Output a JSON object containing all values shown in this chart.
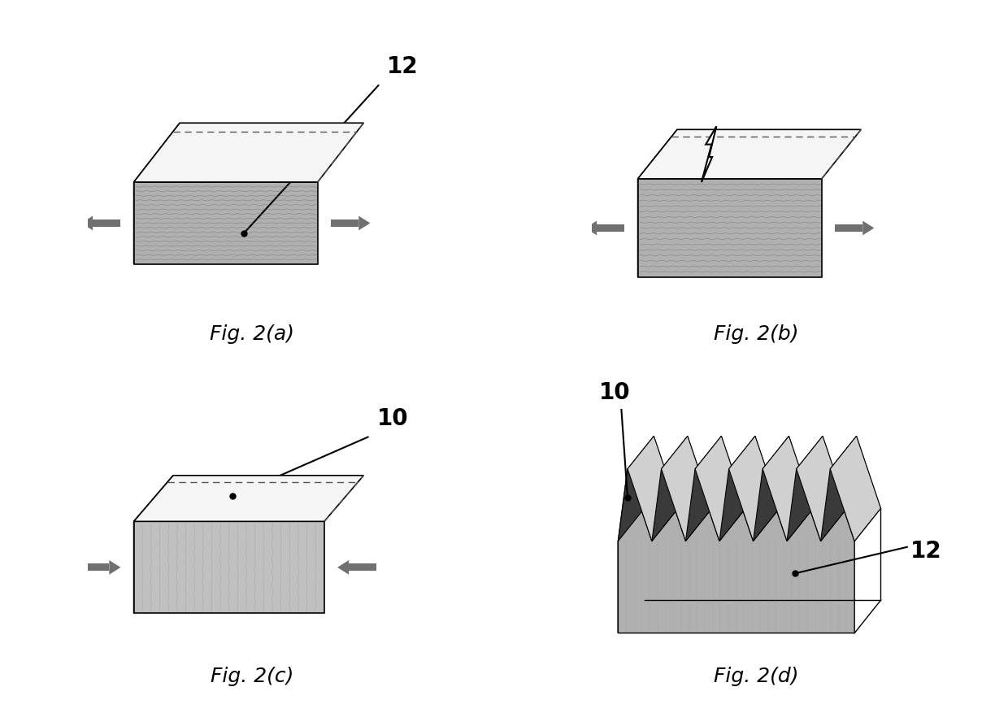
{
  "bg_color": "#ffffff",
  "fig_labels": [
    "Fig. 2(a)",
    "Fig. 2(b)",
    "Fig. 2(c)",
    "Fig. 2(d)"
  ],
  "label_fontsize": 18,
  "annotation_fontsize": 20,
  "front_color_ab": "#b0b0b0",
  "front_color_c": "#c0c0c0",
  "front_color_d": "#b0b0b0",
  "top_color": "#f5f5f5",
  "side_color": "#111111",
  "tooth_dark": "#404040",
  "tooth_light": "#c8c8c8",
  "tooth_mid": "#909090",
  "arrow_color": "#707070",
  "dashed_color": "#555555"
}
